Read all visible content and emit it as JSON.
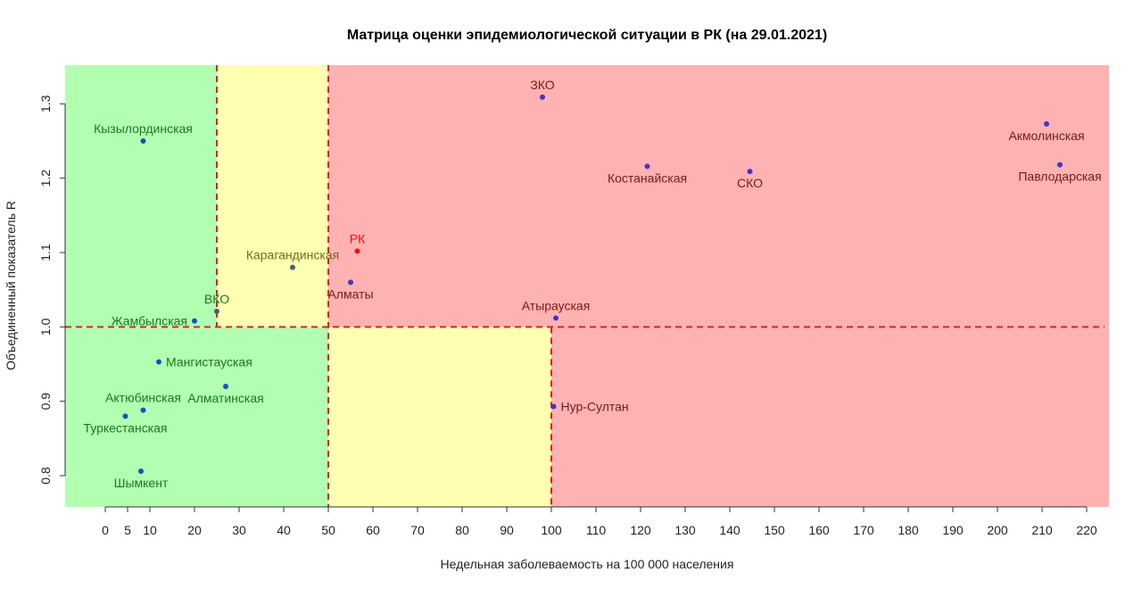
{
  "chart_data": {
    "type": "scatter",
    "title": "Матрица оценки эпидемиологической ситуации в РК (на 29.01.2021)",
    "xlabel": "Недельная заболеваемость на 100 000 населения",
    "ylabel": "Объединенный показатель R",
    "xlim": [
      -9,
      225
    ],
    "ylim": [
      0.758,
      1.352
    ],
    "x_ticks": [
      0,
      5,
      10,
      20,
      30,
      40,
      50,
      60,
      70,
      80,
      90,
      100,
      110,
      120,
      130,
      140,
      150,
      160,
      170,
      180,
      190,
      200,
      210,
      220
    ],
    "y_ticks": [
      0.8,
      0.9,
      1.0,
      1.1,
      1.2,
      1.3
    ],
    "thresholds": {
      "x": [
        25,
        50,
        100
      ],
      "y": 1.0
    },
    "zones": [
      {
        "name": "green",
        "color": "#b2ffb2",
        "x_range": [
          -9,
          25
        ],
        "y_range": [
          1.0,
          1.352
        ]
      },
      {
        "name": "green",
        "color": "#b2ffb2",
        "x_range": [
          -9,
          50
        ],
        "y_range": [
          0.758,
          1.0
        ]
      },
      {
        "name": "yellow",
        "color": "#ffffb2",
        "x_range": [
          25,
          50
        ],
        "y_range": [
          1.0,
          1.352
        ]
      },
      {
        "name": "yellow",
        "color": "#ffffb2",
        "x_range": [
          50,
          100
        ],
        "y_range": [
          0.758,
          1.0
        ]
      },
      {
        "name": "red",
        "color": "#ffb2b2",
        "x_range": [
          50,
          225
        ],
        "y_range": [
          1.0,
          1.352
        ]
      },
      {
        "name": "red",
        "color": "#ffb2b2",
        "x_range": [
          100,
          225
        ],
        "y_range": [
          0.758,
          1.0
        ]
      }
    ],
    "colors": {
      "threshold_line": "#dd2222",
      "point": "#4433cc",
      "point_green": "#1155bb",
      "highlight": "#ee1111"
    },
    "points": [
      {
        "label": "Кызылординская",
        "x": 8.5,
        "y": 1.25,
        "label_pos": "above",
        "label_color": "#1a7a1a",
        "point_color": "#1155bb"
      },
      {
        "label": "Жамбылская",
        "x": 20,
        "y": 1.008,
        "label_pos": "left",
        "label_color": "#1a7a1a",
        "point_color": "#1155bb"
      },
      {
        "label": "ВКО",
        "x": 25,
        "y": 1.021,
        "label_pos": "above",
        "label_color": "#1a7a1a",
        "point_color": "#555577"
      },
      {
        "label": "Карагандинская",
        "x": 42,
        "y": 1.08,
        "label_pos": "above",
        "label_color": "#7a6a1a",
        "point_color": "#555599"
      },
      {
        "label": "РК",
        "x": 56.5,
        "y": 1.102,
        "label_pos": "above",
        "label_color": "#ee1111",
        "point_color": "#ee1111"
      },
      {
        "label": "Алматы",
        "x": 55,
        "y": 1.06,
        "label_pos": "below",
        "label_color": "#7a1a1a",
        "point_color": "#4433cc"
      },
      {
        "label": "ЗКО",
        "x": 98,
        "y": 1.309,
        "label_pos": "above",
        "label_color": "#7a1a1a",
        "point_color": "#4433cc"
      },
      {
        "label": "Костанайская",
        "x": 121.5,
        "y": 1.216,
        "label_pos": "below",
        "label_color": "#7a1a1a",
        "point_color": "#4433cc"
      },
      {
        "label": "СКО",
        "x": 144.5,
        "y": 1.209,
        "label_pos": "below",
        "label_color": "#7a1a1a",
        "point_color": "#4433cc"
      },
      {
        "label": "Акмолинская",
        "x": 211,
        "y": 1.273,
        "label_pos": "below",
        "label_color": "#7a1a1a",
        "point_color": "#4433cc"
      },
      {
        "label": "Павлодарская",
        "x": 214,
        "y": 1.218,
        "label_pos": "below",
        "label_color": "#7a1a1a",
        "point_color": "#4433cc"
      },
      {
        "label": "Атырауская",
        "x": 101,
        "y": 1.012,
        "label_pos": "above",
        "label_color": "#7a1a1a",
        "point_color": "#4433cc"
      },
      {
        "label": "Мангистауская",
        "x": 12,
        "y": 0.953,
        "label_pos": "right",
        "label_color": "#1a7a1a",
        "point_color": "#1155bb"
      },
      {
        "label": "Алматинская",
        "x": 27,
        "y": 0.92,
        "label_pos": "below",
        "label_color": "#1a7a1a",
        "point_color": "#1155bb"
      },
      {
        "label": "Актюбинская",
        "x": 8.5,
        "y": 0.888,
        "label_pos": "above",
        "label_color": "#1a7a1a",
        "point_color": "#1155bb"
      },
      {
        "label": "Туркестанская",
        "x": 4.5,
        "y": 0.88,
        "label_pos": "below",
        "label_color": "#1a7a1a",
        "point_color": "#1155bb"
      },
      {
        "label": "Нур-Султан",
        "x": 100.5,
        "y": 0.893,
        "label_pos": "right",
        "label_color": "#7a1a1a",
        "point_color": "#4433cc"
      },
      {
        "label": "Шымкент",
        "x": 8,
        "y": 0.806,
        "label_pos": "below",
        "label_color": "#1a7a1a",
        "point_color": "#1155bb"
      }
    ]
  }
}
